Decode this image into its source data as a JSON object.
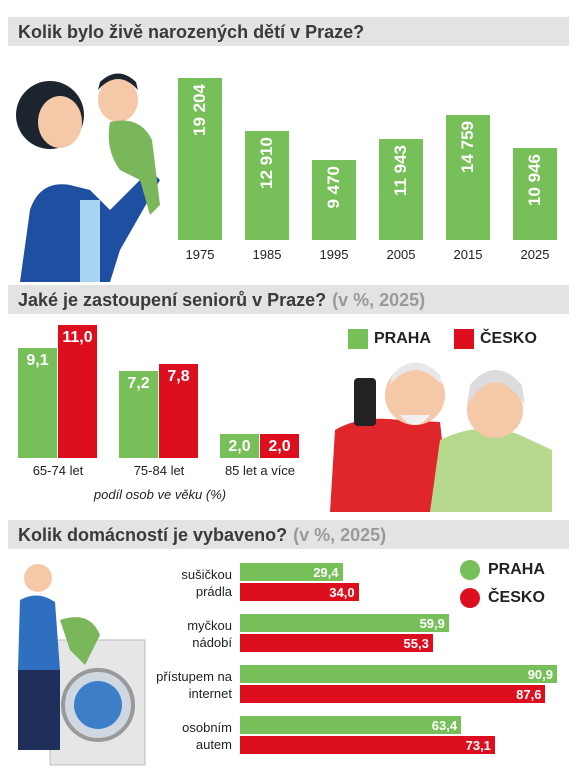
{
  "chart_data": [
    {
      "type": "bar",
      "title": "Kolik bylo živě narozených dětí v Praze?",
      "categories": [
        "1975",
        "1985",
        "1995",
        "2005",
        "2015",
        "2025"
      ],
      "values": [
        19204,
        12910,
        9470,
        11943,
        14759,
        10946
      ],
      "value_labels": [
        "19 204",
        "12 910",
        "9 470",
        "11 943",
        "14 759",
        "10 946"
      ],
      "color": "#77bf58"
    },
    {
      "type": "bar",
      "title": "Jaké je zastoupení seniorů v Praze?",
      "subtitle": "(v %, 2025)",
      "x_label": "podíl osob ve věku (%)",
      "categories": [
        "65-74 let",
        "75-84 let",
        "85 let a více"
      ],
      "series": [
        {
          "name": "PRAHA",
          "color": "#77bf58",
          "values": [
            9.1,
            7.2,
            2.0
          ],
          "value_labels": [
            "9,1",
            "7,2",
            "2,0"
          ]
        },
        {
          "name": "ČESKO",
          "color": "#dd0f1f",
          "values": [
            11.0,
            7.8,
            2.0
          ],
          "value_labels": [
            "11,0",
            "7,8",
            "2,0"
          ]
        }
      ]
    },
    {
      "type": "barh",
      "title": "Kolik domácností je vybaveno?",
      "subtitle": "(v %, 2025)",
      "categories": [
        "sušičkou prádla",
        "myčkou nádobí",
        "přístupem na internet",
        "osobním autem"
      ],
      "series": [
        {
          "name": "PRAHA",
          "color": "#77bf58",
          "values": [
            29.4,
            59.9,
            90.9,
            63.4
          ],
          "value_labels": [
            "29,4",
            "59,9",
            "90,9",
            "63,4"
          ]
        },
        {
          "name": "ČESKO",
          "color": "#dd0f1f",
          "values": [
            34.0,
            55.3,
            87.6,
            73.1
          ],
          "value_labels": [
            "34,0",
            "55,3",
            "87,6",
            "73,1"
          ]
        }
      ]
    }
  ]
}
